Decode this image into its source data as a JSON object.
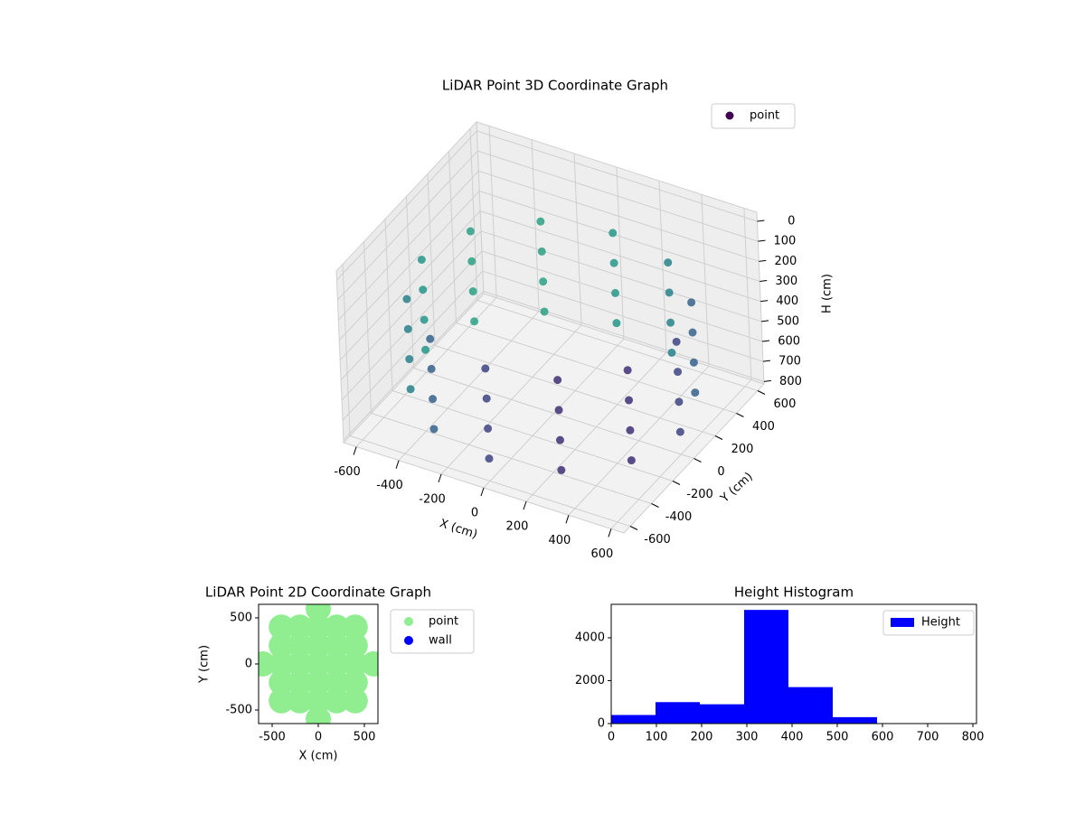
{
  "chart_data": [
    {
      "type": "scatter3d",
      "title": "LiDAR Point 3D Coordinate Graph",
      "xlabel": "X (cm)",
      "ylabel": "Y (cm)",
      "zlabel": "H (cm)",
      "xlim": [
        -660,
        660
      ],
      "ylim": [
        -660,
        660
      ],
      "zlim": [
        812,
        -45
      ],
      "xticks": [
        -600,
        -400,
        -200,
        0,
        200,
        400,
        600
      ],
      "yticks": [
        -600,
        -400,
        -200,
        0,
        200,
        400,
        600
      ],
      "zticks": [
        0,
        100,
        200,
        300,
        400,
        500,
        600,
        700,
        800
      ],
      "legend": "upper right",
      "grid": true,
      "cmap": [
        "#440154",
        "#3b528b",
        "#21918c",
        "#35b779"
      ],
      "series": [
        {
          "name": "point",
          "color": "#440154",
          "x": [
            600,
            520,
            300,
            0,
            -300,
            -520,
            -600,
            -520,
            -300,
            0,
            300,
            520,
            600,
            520,
            300,
            0,
            -300,
            -520,
            -600,
            -520,
            -300,
            0,
            300,
            520,
            600,
            520,
            300,
            0,
            -300,
            -520,
            -600,
            -520,
            -300,
            0,
            300,
            520,
            600,
            520,
            300,
            0,
            -300,
            -520,
            -600,
            -520,
            -300,
            0,
            300,
            520
          ],
          "y": [
            0,
            300,
            520,
            600,
            520,
            300,
            0,
            -300,
            -520,
            -600,
            -520,
            -300,
            0,
            300,
            520,
            600,
            520,
            300,
            0,
            -300,
            -520,
            -600,
            -520,
            -300,
            0,
            300,
            520,
            600,
            520,
            300,
            0,
            -300,
            -520,
            -600,
            -520,
            -300,
            0,
            300,
            520,
            600,
            520,
            300,
            0,
            -300,
            -520,
            -600,
            -520,
            -300
          ],
          "z": [
            250,
            250,
            250,
            250,
            250,
            250,
            250,
            250,
            250,
            250,
            250,
            250,
            400,
            400,
            400,
            400,
            400,
            400,
            400,
            400,
            400,
            400,
            400,
            400,
            550,
            550,
            550,
            550,
            550,
            550,
            550,
            550,
            550,
            550,
            550,
            550,
            700,
            700,
            700,
            700,
            700,
            700,
            700,
            700,
            700,
            700,
            700,
            700
          ]
        }
      ]
    },
    {
      "type": "scatter",
      "title": "LiDAR Point 2D Coordinate Graph",
      "xlabel": "X (cm)",
      "ylabel": "Y (cm)",
      "xlim": [
        -647,
        647
      ],
      "ylim": [
        -647,
        647
      ],
      "xticks": [
        -500,
        0,
        500
      ],
      "yticks": [
        -500,
        0,
        500
      ],
      "legend": "outside right",
      "series": [
        {
          "name": "point",
          "color": "#90ee90",
          "x": [
            -600,
            -400,
            -400,
            -400,
            -400,
            -400,
            -200,
            -200,
            -200,
            -200,
            -200,
            0,
            0,
            0,
            0,
            0,
            0,
            0,
            200,
            200,
            200,
            200,
            200,
            400,
            400,
            400,
            400,
            400,
            600
          ],
          "y": [
            0,
            -400,
            -200,
            0,
            200,
            400,
            -400,
            -200,
            0,
            200,
            400,
            -600,
            -400,
            -200,
            0,
            200,
            400,
            600,
            -400,
            -200,
            0,
            200,
            400,
            -400,
            -200,
            0,
            200,
            400,
            0
          ]
        },
        {
          "name": "wall",
          "color": "#0000ff",
          "x": [],
          "y": []
        }
      ]
    },
    {
      "type": "histogram",
      "title": "Height Histogram",
      "name": "Height",
      "color": "#0000ff",
      "bins": [
        0,
        98,
        196,
        294,
        392,
        490,
        588,
        686,
        784
      ],
      "values": [
        400,
        1000,
        900,
        5300,
        1700,
        300,
        20,
        10
      ],
      "xlim": [
        0,
        808
      ],
      "ylim": [
        0,
        5560
      ],
      "xticks": [
        0,
        100,
        200,
        300,
        400,
        500,
        600,
        700,
        800
      ],
      "yticks": [
        0,
        2000,
        4000
      ],
      "legend": "upper right"
    }
  ]
}
